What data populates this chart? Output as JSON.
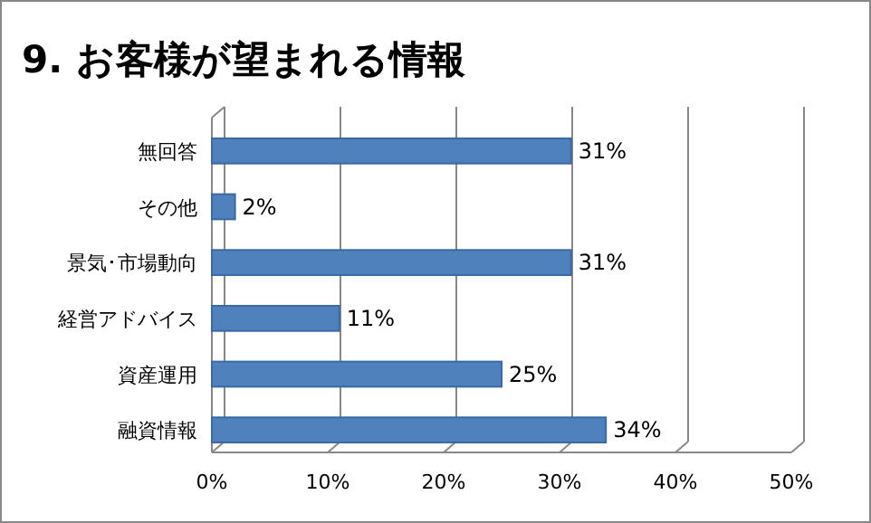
{
  "chart_data": {
    "type": "bar",
    "orientation": "horizontal",
    "title": "9. お客様が望まれる情報",
    "categories": [
      "無回答",
      "その他",
      "景気･市場動向",
      "経営アドバイス",
      "資産運用",
      "融資情報"
    ],
    "values": [
      31,
      2,
      31,
      11,
      25,
      34
    ],
    "value_labels": [
      "31%",
      "2%",
      "31%",
      "11%",
      "25%",
      "34%"
    ],
    "color": "#4f81bd",
    "xlim": [
      0,
      50
    ],
    "xticks": [
      {
        "value": 0,
        "label": "0%"
      },
      {
        "value": 10,
        "label": "10%"
      },
      {
        "value": 20,
        "label": "20%"
      },
      {
        "value": 30,
        "label": "30%"
      },
      {
        "value": 40,
        "label": "40%"
      },
      {
        "value": 50,
        "label": "50%"
      }
    ],
    "grid": "x"
  }
}
